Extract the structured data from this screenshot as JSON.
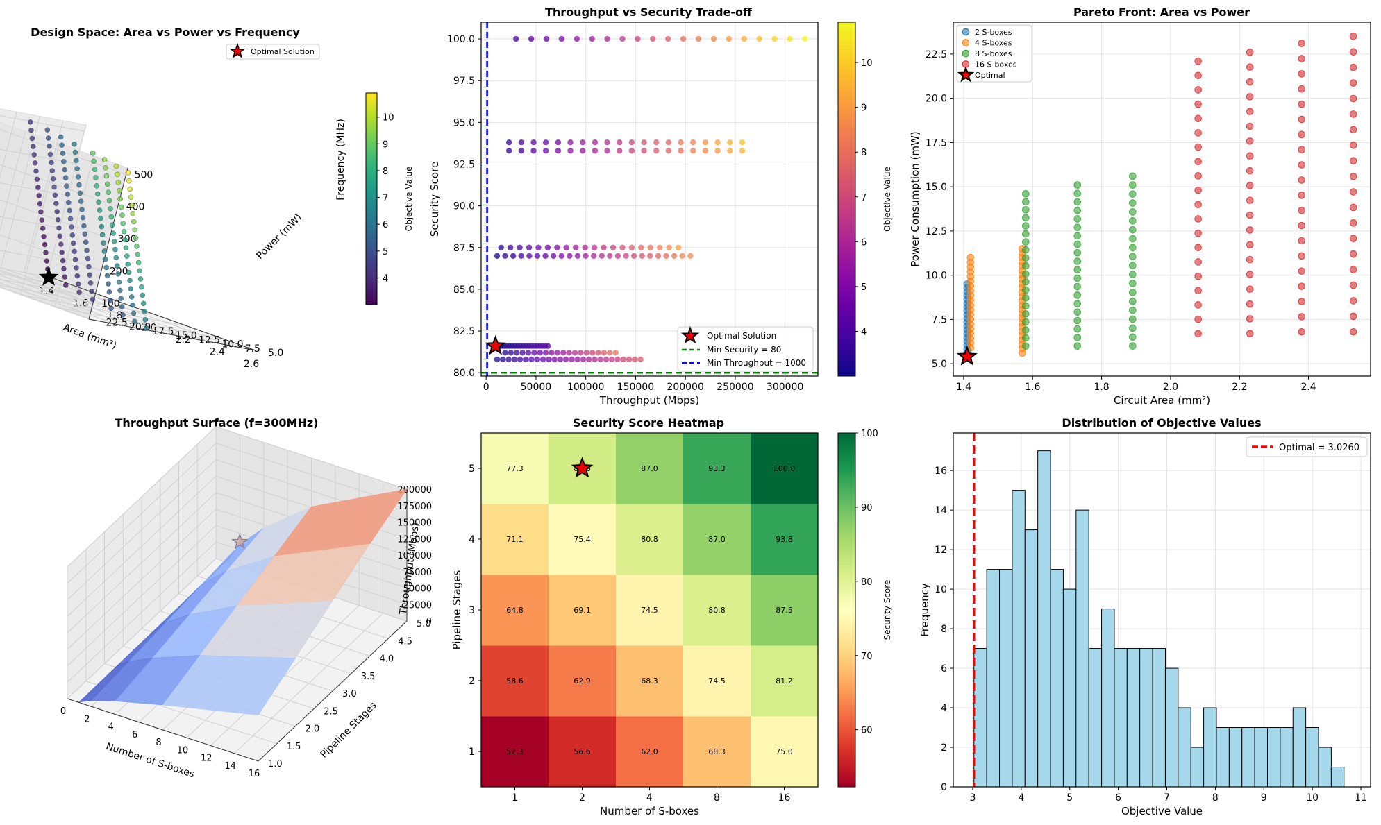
{
  "figure": {
    "background": "#ffffff"
  },
  "chart_data": [
    {
      "id": "p1",
      "type": "scatter-3d",
      "title": "Design Space: Area vs Power vs Frequency",
      "xlabel": "Area (mm²)",
      "ylabel": "Power (mW)",
      "zlabel": "Frequency (MHz)",
      "xticks": [
        1.4,
        1.6,
        1.8,
        2.0,
        2.2,
        2.4,
        2.6
      ],
      "yticks": [
        5.0,
        7.5,
        10.0,
        12.5,
        15.0,
        17.5,
        20.0,
        22.5
      ],
      "zticks": [
        100,
        200,
        300,
        400,
        500
      ],
      "xlim": [
        1.38,
        2.6
      ],
      "ylim": [
        5,
        23
      ],
      "zlim": [
        50,
        520
      ],
      "colormap": "viridis",
      "colorbar": {
        "label": "Objective Value",
        "range": [
          3.0,
          10.9
        ],
        "ticks": [
          4,
          5,
          6,
          7,
          8,
          9,
          10
        ]
      },
      "legend": [
        "Optimal Solution"
      ],
      "optimal": {
        "area": 1.41,
        "power": 5.4,
        "freq": 50
      },
      "columns": [
        {
          "area": 1.41,
          "power": 5.4,
          "fmax": 500,
          "obj_min": 3.0,
          "obj_max": 4.3
        },
        {
          "area": 1.57,
          "power": 6.5,
          "fmax": 500,
          "obj_min": 3.5,
          "obj_max": 5.0
        },
        {
          "area": 1.73,
          "power": 8.0,
          "fmax": 500,
          "obj_min": 4.0,
          "obj_max": 5.8
        },
        {
          "area": 1.89,
          "power": 9.5,
          "fmax": 500,
          "obj_min": 4.3,
          "obj_max": 6.4
        },
        {
          "area": 2.08,
          "power": 11.0,
          "fmax": 500,
          "obj_min": 5.0,
          "obj_max": 8.8
        },
        {
          "area": 2.23,
          "power": 12.5,
          "fmax": 500,
          "obj_min": 5.3,
          "obj_max": 9.6
        },
        {
          "area": 2.38,
          "power": 14.0,
          "fmax": 500,
          "obj_min": 5.8,
          "obj_max": 10.2
        },
        {
          "area": 2.53,
          "power": 15.5,
          "fmax": 500,
          "obj_min": 6.3,
          "obj_max": 10.9
        }
      ]
    },
    {
      "id": "p2",
      "type": "scatter",
      "title": "Throughput vs Security Trade-off",
      "xlabel": "Throughput (Mbps)",
      "ylabel": "Security Score",
      "xticks": [
        0,
        50000,
        100000,
        150000,
        200000,
        250000,
        300000
      ],
      "yticks": [
        80.0,
        82.5,
        85.0,
        87.5,
        90.0,
        92.5,
        95.0,
        97.5,
        100.0
      ],
      "xlim": [
        -5000,
        333000
      ],
      "ylim": [
        79.8,
        101.0
      ],
      "colormap": "plasma",
      "colorbar": {
        "label": "Objective Value",
        "range": [
          3.0,
          10.9
        ],
        "ticks": [
          4,
          5,
          6,
          7,
          8,
          9,
          10
        ]
      },
      "legend": [
        "Optimal Solution",
        "Min Security = 80",
        "Min Throughput = 1000"
      ],
      "min_security": 80,
      "min_throughput": 1000,
      "optimal": {
        "throughput": 9400,
        "security": 81.6
      },
      "rows": [
        {
          "security": 100.0,
          "x_start": 30000,
          "x_end": 320000,
          "count": 20,
          "obj_min": 3.8,
          "obj_max": 10.9
        },
        {
          "security": 93.8,
          "x_start": 23000,
          "x_end": 257000,
          "count": 20,
          "obj_min": 3.6,
          "obj_max": 9.8
        },
        {
          "security": 93.3,
          "x_start": 23000,
          "x_end": 257000,
          "count": 20,
          "obj_min": 3.6,
          "obj_max": 9.6
        },
        {
          "security": 87.5,
          "x_start": 15000,
          "x_end": 193000,
          "count": 20,
          "obj_min": 3.3,
          "obj_max": 9.0
        },
        {
          "security": 87.0,
          "x_start": 11000,
          "x_end": 205000,
          "count": 25,
          "obj_min": 3.2,
          "obj_max": 8.6
        },
        {
          "security": 81.6,
          "x_start": 9400,
          "x_end": 62000,
          "count": 20,
          "obj_min": 3.0,
          "obj_max": 4.2
        },
        {
          "security": 81.2,
          "x_start": 19000,
          "x_end": 130000,
          "count": 20,
          "obj_min": 3.2,
          "obj_max": 8.0
        },
        {
          "security": 80.8,
          "x_start": 11000,
          "x_end": 155000,
          "count": 26,
          "obj_min": 3.1,
          "obj_max": 7.4
        }
      ]
    },
    {
      "id": "p3",
      "type": "scatter",
      "title": "Pareto Front: Area vs Power",
      "xlabel": "Circuit Area (mm²)",
      "ylabel": "Power Consumption (mW)",
      "xticks": [
        1.4,
        1.6,
        1.8,
        2.0,
        2.2,
        2.4
      ],
      "yticks": [
        5.0,
        7.5,
        10.0,
        12.5,
        15.0,
        17.5,
        20.0,
        22.5
      ],
      "xlim": [
        1.37,
        2.58
      ],
      "ylim": [
        4.3,
        24.3
      ],
      "legend": [
        "2 S-boxes",
        "4 S-boxes",
        "8 S-boxes",
        "16 S-boxes",
        "Optimal"
      ],
      "optimal": {
        "area": 1.41,
        "power": 5.4
      },
      "series": [
        {
          "name": "2 S-boxes",
          "color": "#1f77b4",
          "columns": [
            {
              "area": 1.41,
              "p_min": 5.4,
              "p_max": 9.5,
              "count": 20
            }
          ]
        },
        {
          "name": "4 S-boxes",
          "color": "#ff7f0e",
          "columns": [
            {
              "area": 1.42,
              "p_min": 5.9,
              "p_max": 11.0,
              "count": 20
            },
            {
              "area": 1.57,
              "p_min": 5.6,
              "p_max": 11.5,
              "count": 25
            }
          ]
        },
        {
          "name": "8 S-boxes",
          "color": "#2ca02c",
          "columns": [
            {
              "area": 1.58,
              "p_min": 6.0,
              "p_max": 14.6,
              "count": 20
            },
            {
              "area": 1.73,
              "p_min": 6.0,
              "p_max": 15.1,
              "count": 20
            },
            {
              "area": 1.89,
              "p_min": 6.0,
              "p_max": 15.6,
              "count": 20
            }
          ]
        },
        {
          "name": "16 S-boxes",
          "color": "#d62728",
          "columns": [
            {
              "area": 2.08,
              "p_min": 6.7,
              "p_max": 22.1,
              "count": 20
            },
            {
              "area": 2.23,
              "p_min": 6.7,
              "p_max": 22.6,
              "count": 20
            },
            {
              "area": 2.38,
              "p_min": 6.8,
              "p_max": 23.1,
              "count": 20
            },
            {
              "area": 2.53,
              "p_min": 6.8,
              "p_max": 23.5,
              "count": 20
            }
          ]
        }
      ]
    },
    {
      "id": "p4",
      "type": "surface-3d",
      "title": "Throughput Surface (f=300MHz)",
      "xlabel": "Number of S-boxes",
      "ylabel": "Pipeline Stages",
      "zlabel": "Throughput (Mbps)",
      "xticks": [
        0,
        2,
        4,
        6,
        8,
        10,
        12,
        14,
        16
      ],
      "yticks": [
        1.0,
        1.5,
        2.0,
        2.5,
        3.0,
        3.5,
        4.0,
        4.5,
        5.0
      ],
      "zticks": [
        0,
        25000,
        50000,
        75000,
        100000,
        125000,
        150000,
        175000,
        200000
      ],
      "xlim": [
        0,
        16
      ],
      "ylim": [
        1,
        5
      ],
      "zlim": [
        0,
        200000
      ],
      "colormap": "coolwarm",
      "sboxes": [
        1,
        2,
        4,
        8,
        16
      ],
      "stages": [
        1,
        2,
        3,
        4,
        5
      ],
      "values": [
        [
          1000,
          1800,
          2600,
          3400,
          4200
        ],
        [
          9000,
          15000,
          21000,
          27000,
          33000
        ],
        [
          20000,
          32000,
          45000,
          58000,
          70000
        ],
        [
          38000,
          60000,
          82000,
          104000,
          126000
        ],
        [
          70000,
          103000,
          137000,
          170000,
          200000
        ]
      ]
    },
    {
      "id": "p5",
      "type": "heatmap",
      "title": "Security Score Heatmap",
      "xlabel": "Number of S-boxes",
      "ylabel": "Pipeline Stages",
      "xcategories": [
        "1",
        "2",
        "4",
        "8",
        "16"
      ],
      "ycategories": [
        "1",
        "2",
        "3",
        "4",
        "5"
      ],
      "colormap": "RdYlGn",
      "colorbar": {
        "label": "Security Score",
        "range": [
          52.3,
          100
        ],
        "ticks": [
          60,
          70,
          80,
          90,
          100
        ]
      },
      "optimal": {
        "sbox_index": 1,
        "stage_index": 4
      },
      "values": [
        [
          "52.3",
          "56.6",
          "62.0",
          "68.3",
          "75.0"
        ],
        [
          "58.6",
          "62.9",
          "68.3",
          "74.5",
          "81.2"
        ],
        [
          "64.8",
          "69.1",
          "74.5",
          "80.8",
          "87.5"
        ],
        [
          "71.1",
          "75.4",
          "80.8",
          "87.0",
          "93.8"
        ],
        [
          "77.3",
          "81.6",
          "87.0",
          "93.3",
          "100.0"
        ]
      ]
    },
    {
      "id": "p6",
      "type": "bar",
      "title": "Distribution of Objective Values",
      "xlabel": "Objective Value",
      "ylabel": "Frequency",
      "xticks": [
        3,
        4,
        5,
        6,
        7,
        8,
        9,
        10,
        11
      ],
      "yticks": [
        0,
        2,
        4,
        6,
        8,
        10,
        12,
        14,
        16
      ],
      "xlim": [
        2.6,
        11.2
      ],
      "ylim": [
        0,
        17.9
      ],
      "bin_start": 3.026,
      "bin_width": 0.263,
      "values": [
        7,
        11,
        11,
        15,
        13,
        17,
        11,
        10,
        14,
        7,
        9,
        7,
        7,
        7,
        7,
        6,
        4,
        2,
        4,
        3,
        3,
        3,
        3,
        3,
        3,
        4,
        3,
        2,
        1
      ],
      "bar_color": "#a6d8ec",
      "optimal_value": 3.026,
      "legend": [
        "Optimal = 3.0260"
      ]
    }
  ]
}
